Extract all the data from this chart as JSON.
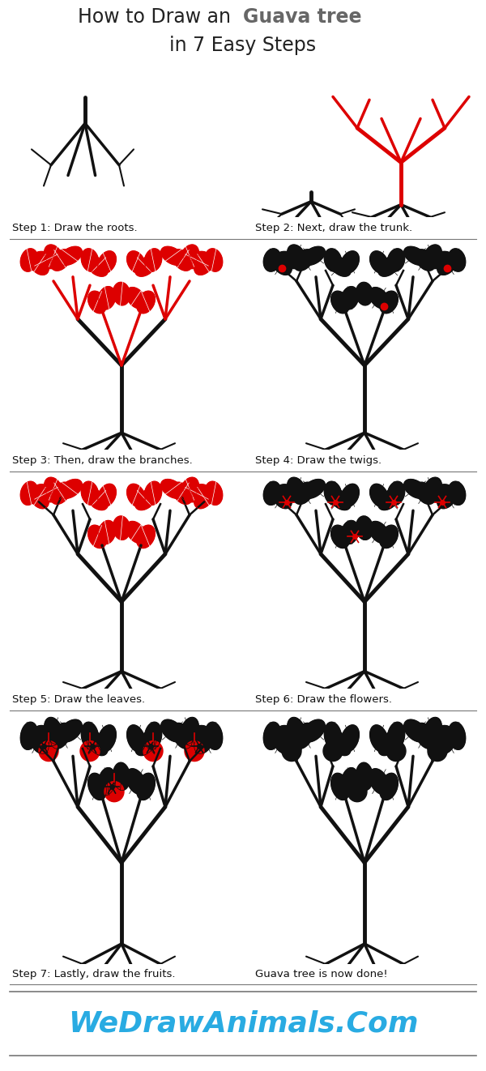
{
  "title_line1": "How to Draw an ",
  "title_bold": "Guava tree",
  "title_line2": "in 7 Easy Steps",
  "title_color_normal": "#222222",
  "title_color_bold": "#666666",
  "step_labels": [
    "Step 1: Draw the roots.",
    "Step 2: Next, draw the trunk.",
    "Step 3: Then, draw the branches.",
    "Step 4: Draw the twigs.",
    "Step 5: Draw the leaves.",
    "Step 6: Draw the flowers.",
    "Step 7: Lastly, draw the fruits.",
    "Guava tree is now done!"
  ],
  "watermark": "WeDrawAnimals.Com",
  "watermark_color": "#29ABE2",
  "bg_color": "#ffffff",
  "figsize": [
    6.0,
    13.22
  ],
  "dpi": 100,
  "separator_color": "#777777",
  "label_fontsize": 9.5,
  "title_fontsize": 17,
  "watermark_fontsize": 26
}
